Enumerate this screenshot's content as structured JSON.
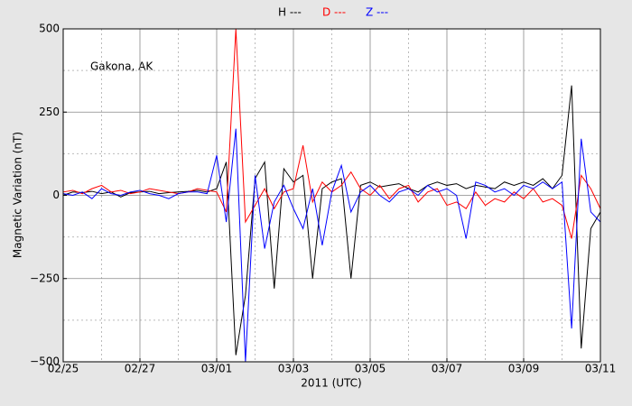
{
  "chart_data": {
    "type": "line",
    "annotation": "Gakona, AK",
    "xlabel": "2011 (UTC)",
    "ylabel": "Magnetic Variation (nT)",
    "x": [
      0,
      0.25,
      0.5,
      0.75,
      1,
      1.25,
      1.5,
      1.75,
      2,
      2.25,
      2.5,
      2.75,
      3,
      3.25,
      3.5,
      3.75,
      4,
      4.25,
      4.5,
      4.75,
      5,
      5.25,
      5.5,
      5.75,
      6,
      6.25,
      6.5,
      6.75,
      7,
      7.25,
      7.5,
      7.75,
      8,
      8.25,
      8.5,
      8.75,
      9,
      9.25,
      9.5,
      9.75,
      10,
      10.25,
      10.5,
      10.75,
      11,
      11.25,
      11.5,
      11.75,
      12,
      12.25,
      12.5,
      12.75,
      13,
      13.25,
      13.5,
      13.75,
      14
    ],
    "series": [
      {
        "name": "H ---",
        "color": "#000000",
        "values": [
          0,
          10,
          8,
          12,
          5,
          10,
          -5,
          8,
          10,
          12,
          5,
          8,
          10,
          12,
          15,
          10,
          20,
          100,
          -480,
          -300,
          50,
          100,
          -280,
          80,
          40,
          60,
          -250,
          20,
          40,
          50,
          -250,
          30,
          40,
          25,
          30,
          35,
          20,
          10,
          30,
          40,
          30,
          35,
          20,
          30,
          25,
          20,
          40,
          30,
          40,
          30,
          50,
          20,
          60,
          330,
          -460,
          -100,
          -50
        ]
      },
      {
        "name": "D ---",
        "color": "#ff0000",
        "values": [
          10,
          15,
          5,
          20,
          30,
          10,
          15,
          5,
          10,
          20,
          15,
          10,
          5,
          10,
          20,
          15,
          10,
          -50,
          500,
          -80,
          -30,
          20,
          -40,
          10,
          20,
          150,
          -20,
          40,
          10,
          30,
          70,
          20,
          0,
          30,
          -10,
          20,
          30,
          -20,
          10,
          20,
          -30,
          -20,
          -40,
          10,
          -30,
          -10,
          -20,
          10,
          -10,
          20,
          -20,
          -10,
          -30,
          -130,
          60,
          20,
          -40
        ]
      },
      {
        "name": "Z ---",
        "color": "#0000ff",
        "values": [
          5,
          0,
          10,
          -10,
          20,
          5,
          0,
          10,
          15,
          5,
          0,
          -10,
          5,
          10,
          10,
          5,
          120,
          -80,
          200,
          -500,
          60,
          -160,
          -20,
          30,
          -40,
          -100,
          20,
          -150,
          10,
          90,
          -50,
          10,
          30,
          0,
          -20,
          10,
          20,
          0,
          30,
          10,
          20,
          0,
          -130,
          40,
          30,
          10,
          20,
          0,
          30,
          20,
          40,
          20,
          40,
          -400,
          170,
          -50,
          -80
        ]
      }
    ],
    "xlim": [
      0,
      14
    ],
    "xticks": [
      {
        "value": 0,
        "label": "02/25"
      },
      {
        "value": 2,
        "label": "02/27"
      },
      {
        "value": 4,
        "label": "03/01"
      },
      {
        "value": 6,
        "label": "03/03"
      },
      {
        "value": 8,
        "label": "03/05"
      },
      {
        "value": 10,
        "label": "03/07"
      },
      {
        "value": 12,
        "label": "03/09"
      },
      {
        "value": 14,
        "label": "03/11"
      }
    ],
    "xminorticks": [
      1,
      3,
      5,
      7,
      9,
      11,
      13
    ],
    "ylim": [
      -500,
      500
    ],
    "yticks": [
      {
        "value": -500,
        "label": "−500"
      },
      {
        "value": -250,
        "label": "−250"
      },
      0,
      250,
      500
    ],
    "yminorticks": [
      -375,
      -125,
      125,
      375
    ],
    "grid": true
  }
}
